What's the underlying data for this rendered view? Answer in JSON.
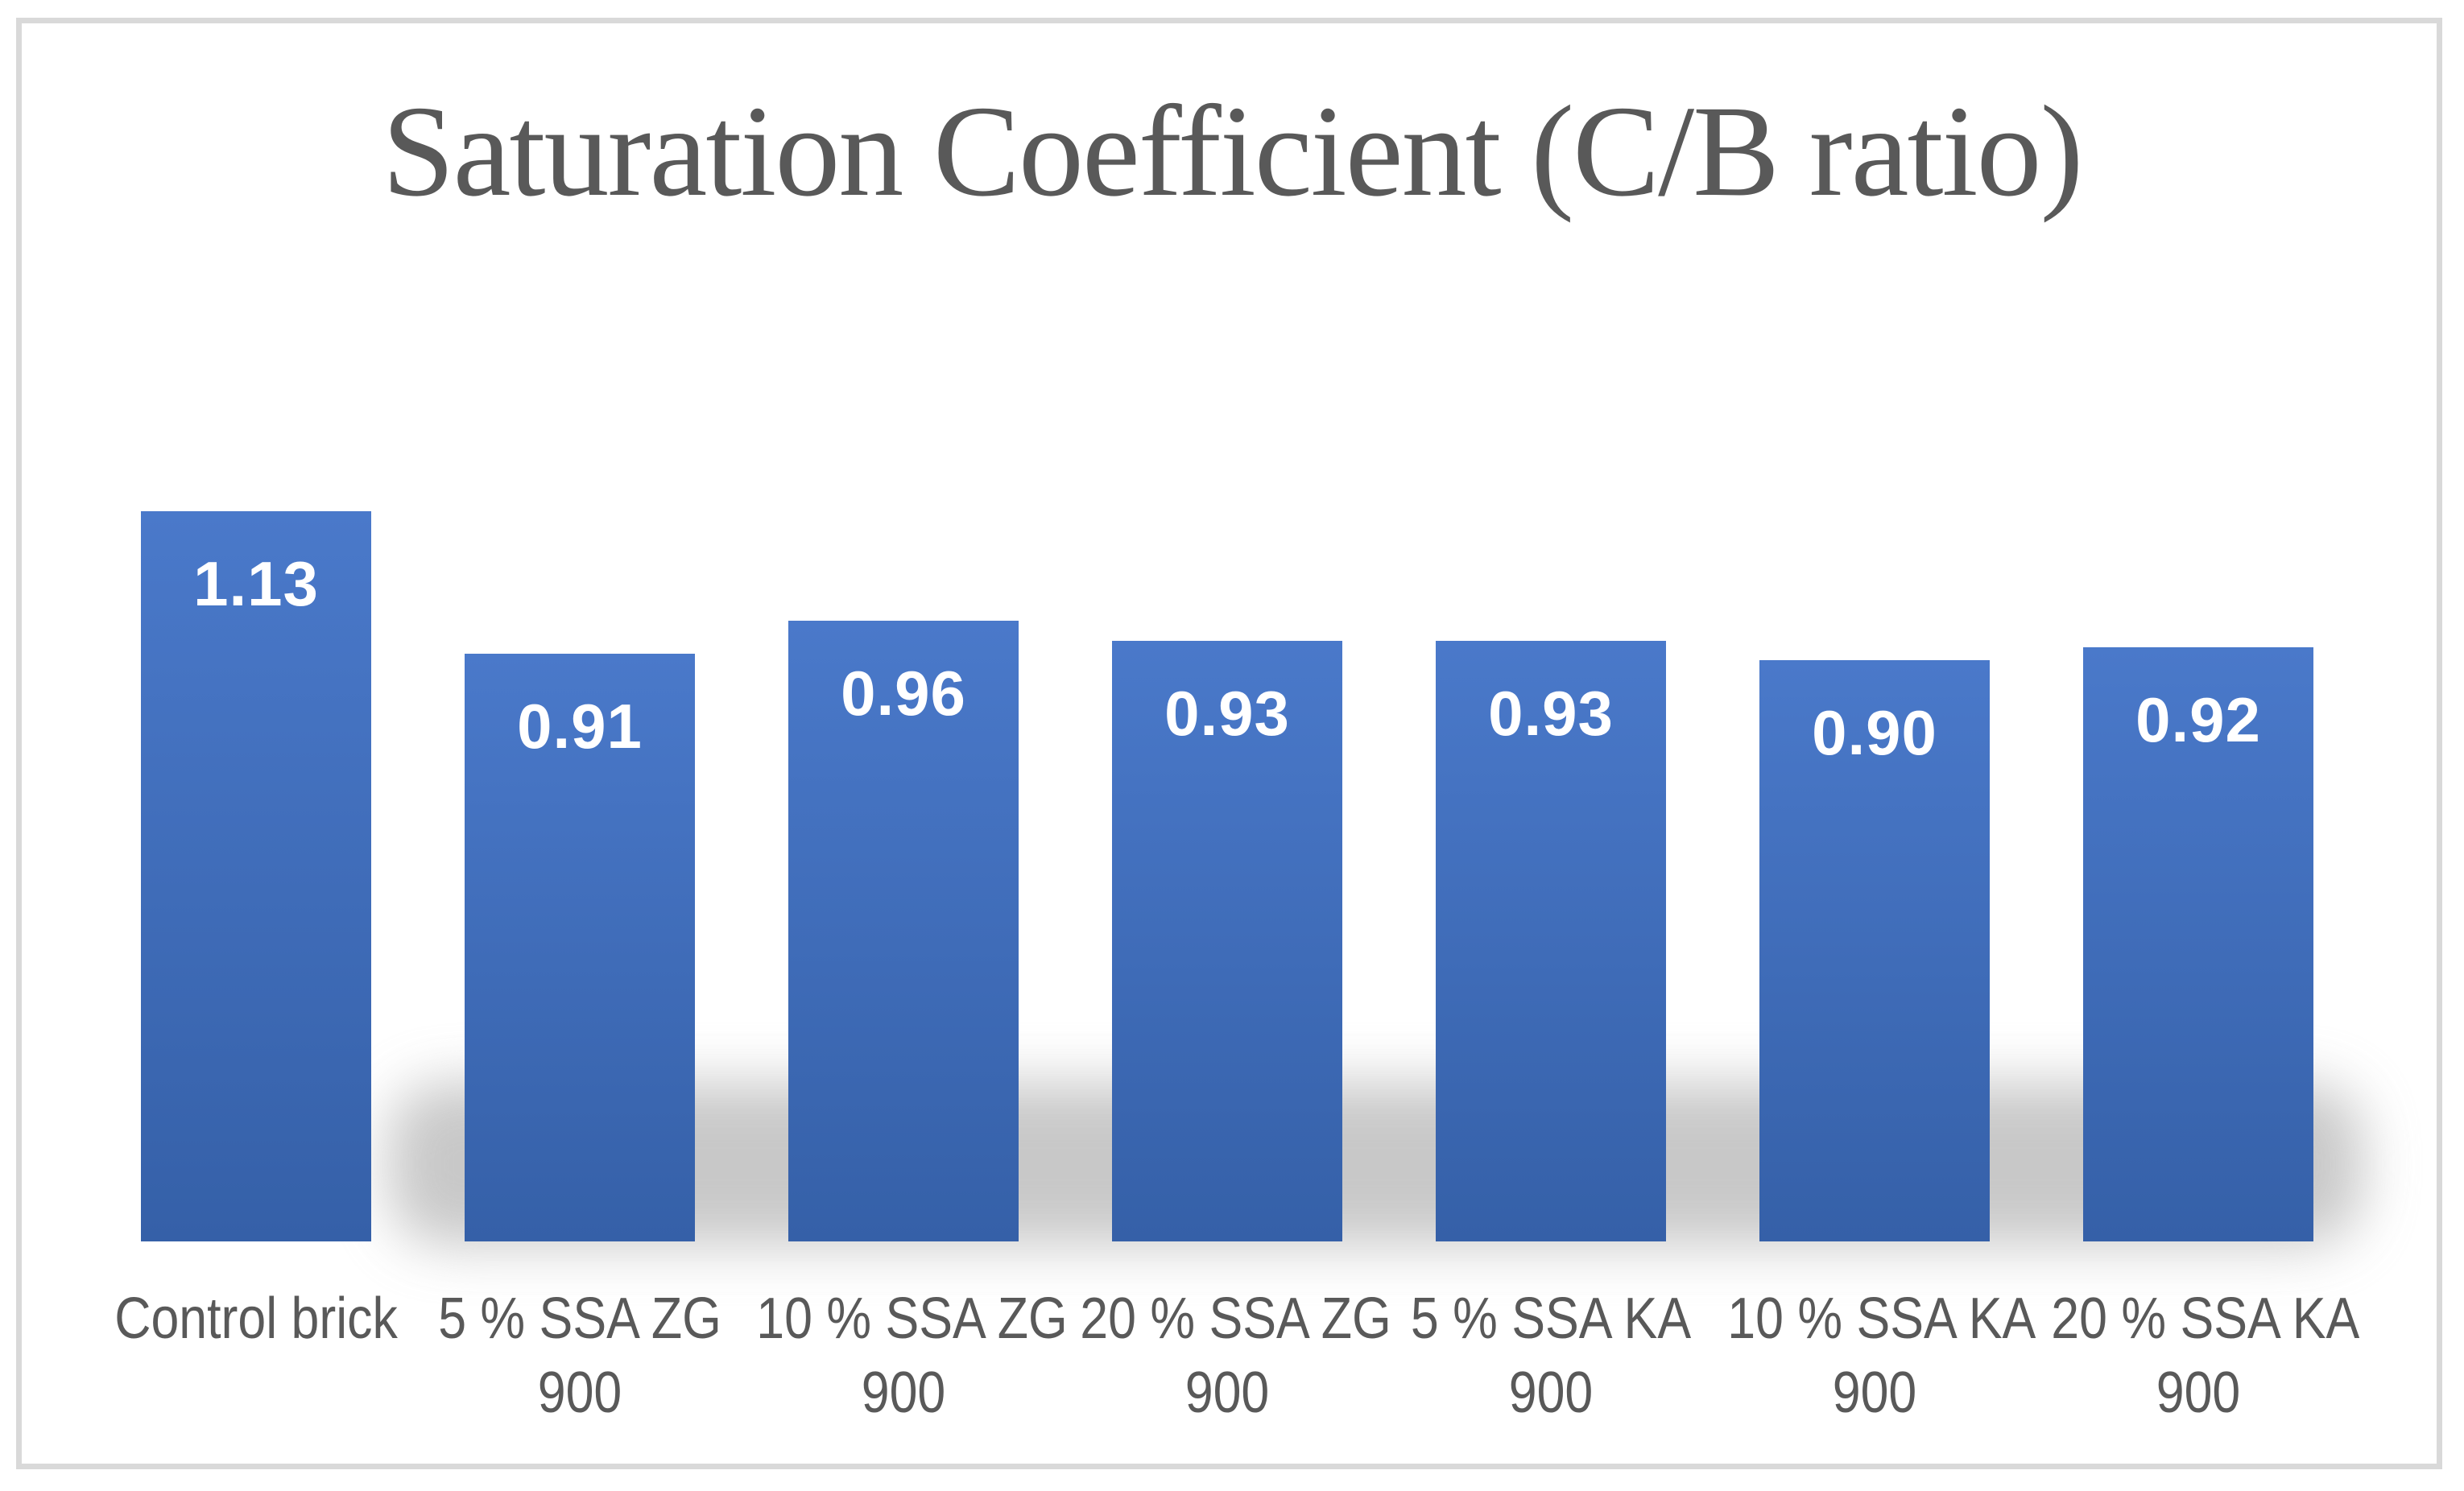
{
  "page": {
    "background": "#ffffff",
    "frame_border_color": "#d9d9d9"
  },
  "chart": {
    "title": "Saturation Coefficient (C/B ratio)",
    "title_color": "#595959"
  },
  "chart_data": {
    "type": "bar",
    "title": "Saturation Coefficient (C/B ratio)",
    "categories": [
      "Control brick",
      "5 % SSA ZG 900",
      "10 % SSA ZG 900",
      "20 % SSA ZG 900",
      "5 % SSA KA 900",
      "10 % SSA KA 900",
      "20 % SSA KA 900"
    ],
    "category_lines": [
      [
        "Control brick"
      ],
      [
        "5 % SSA ZG",
        "900"
      ],
      [
        "10 % SSA ZG",
        "900"
      ],
      [
        "20 % SSA ZG",
        "900"
      ],
      [
        "5 % SSA KA",
        "900"
      ],
      [
        "10 % SSA KA",
        "900"
      ],
      [
        "20 % SSA KA",
        "900"
      ]
    ],
    "values": [
      1.13,
      0.91,
      0.96,
      0.93,
      0.93,
      0.9,
      0.92
    ],
    "data_labels": [
      "1.13",
      "0.91",
      "0.96",
      "0.93",
      "0.93",
      "0.90",
      "0.92"
    ],
    "xlabel": "",
    "ylabel": "",
    "ylim": [
      0,
      1.2
    ],
    "axes_visible": false,
    "gridlines": false,
    "legend": "none",
    "bar_gradient_top": "#4a79ca",
    "bar_gradient_bottom": "#3560a8",
    "data_label_color": "#ffffff",
    "axis_text_color": "#595959",
    "shadow_color": "#b9b9b9"
  }
}
